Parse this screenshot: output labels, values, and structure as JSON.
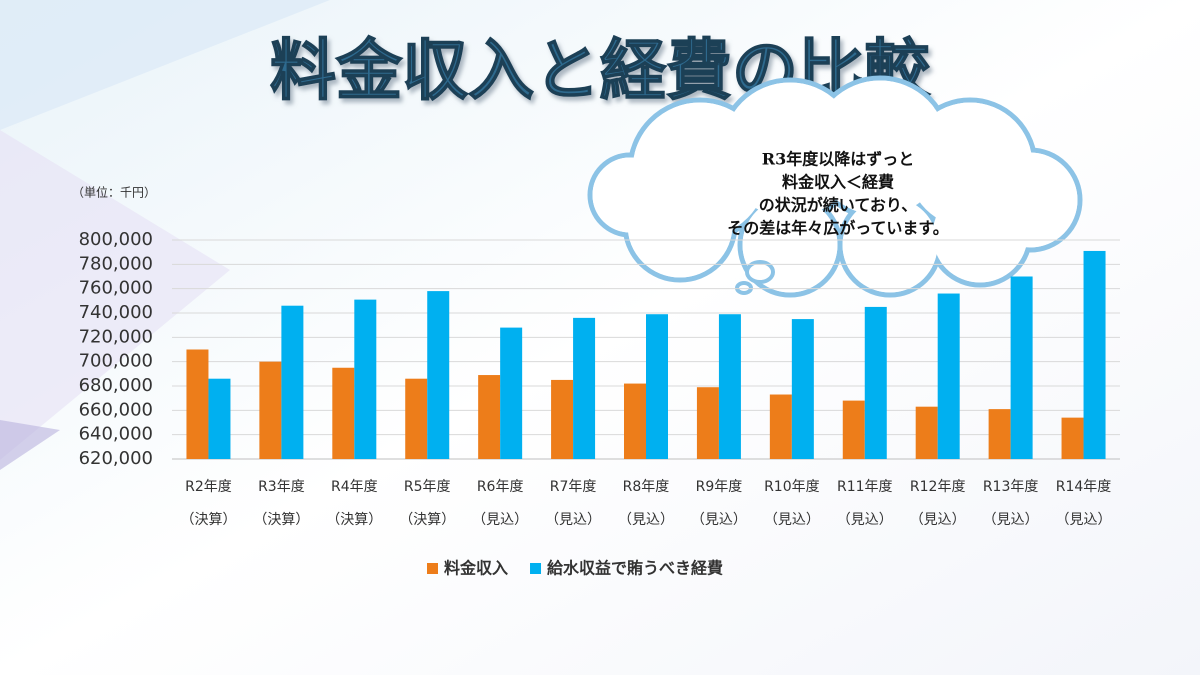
{
  "chart_data": {
    "type": "bar",
    "title": "料金収入と経費の比較",
    "unit_note": "（単位：千円）",
    "callout": [
      "R3年度以降はずっと",
      "料金収入＜経費",
      "の状況が続いており、",
      "その差は年々広がっています。"
    ],
    "categories": [
      [
        "R2年度",
        "（決算）"
      ],
      [
        "R3年度",
        "（決算）"
      ],
      [
        "R4年度",
        "（決算）"
      ],
      [
        "R5年度",
        "（決算）"
      ],
      [
        "R6年度",
        "（見込）"
      ],
      [
        "R7年度",
        "（見込）"
      ],
      [
        "R8年度",
        "（見込）"
      ],
      [
        "R9年度",
        "（見込）"
      ],
      [
        "R10年度",
        "（見込）"
      ],
      [
        "R11年度",
        "（見込）"
      ],
      [
        "R12年度",
        "（見込）"
      ],
      [
        "R13年度",
        "（見込）"
      ],
      [
        "R14年度",
        "（見込）"
      ]
    ],
    "series": [
      {
        "name": "料金収入",
        "color": "#ED7D1A",
        "values": [
          710000,
          700000,
          695000,
          686000,
          689000,
          685000,
          682000,
          679000,
          673000,
          668000,
          663000,
          661000,
          654000
        ]
      },
      {
        "name": "給水収益で賄うべき経費",
        "color": "#00B0F0",
        "values": [
          686000,
          746000,
          751000,
          758000,
          728000,
          736000,
          739000,
          739000,
          735000,
          745000,
          756000,
          770000,
          791000
        ]
      }
    ],
    "ylim": [
      620000,
      800000
    ],
    "yticks": [
      {
        "value": 620000,
        "label": "620,000"
      },
      {
        "value": 640000,
        "label": "640,000"
      },
      {
        "value": 660000,
        "label": "660,000"
      },
      {
        "value": 680000,
        "label": "680,000"
      },
      {
        "value": 700000,
        "label": "700,000"
      },
      {
        "value": 720000,
        "label": "720,000"
      },
      {
        "value": 740000,
        "label": "740,000"
      },
      {
        "value": 760000,
        "label": "760,000"
      },
      {
        "value": 780000,
        "label": "780,000"
      },
      {
        "value": 800000,
        "label": "800,000"
      }
    ],
    "grid": true,
    "legend": "bottom"
  }
}
